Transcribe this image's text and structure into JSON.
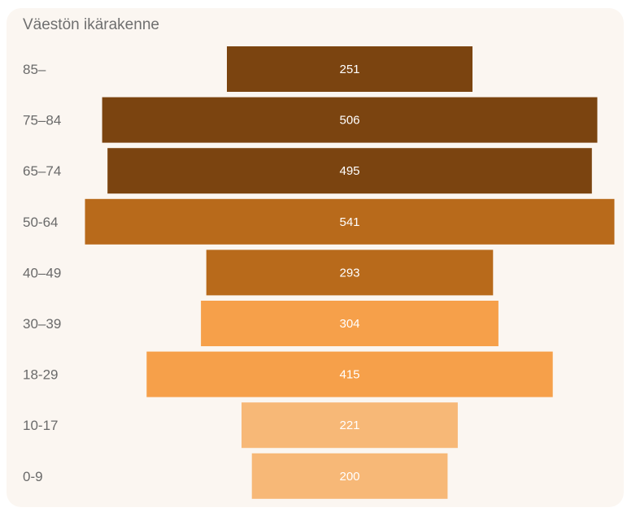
{
  "chart_data": {
    "type": "bar",
    "orientation": "horizontal-centered",
    "title": "Väestön ikärakenne",
    "categories": [
      "85–",
      "75–84",
      "65–74",
      "50-64",
      "40–49",
      "30–39",
      "18-29",
      "10-17",
      "0-9"
    ],
    "values": [
      251,
      506,
      495,
      541,
      293,
      304,
      415,
      221,
      200
    ],
    "colors": [
      "#7b4410",
      "#7b4410",
      "#7b4410",
      "#b86a1b",
      "#b86a1b",
      "#f6a04a",
      "#f6a04a",
      "#f7b877",
      "#f7b877"
    ],
    "label_color": "#ffffff",
    "grid": false,
    "legend": "none"
  }
}
